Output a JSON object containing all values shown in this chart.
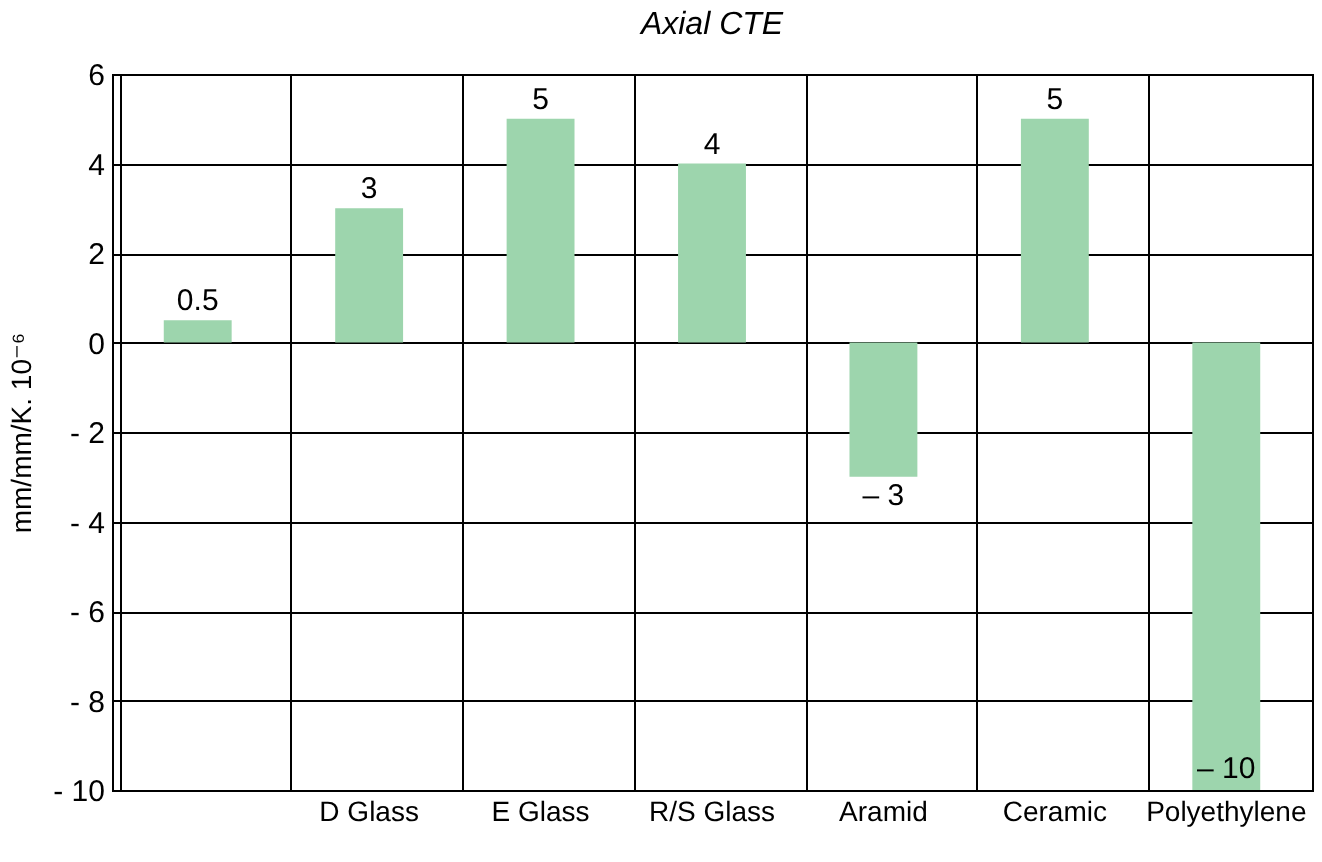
{
  "chart_data": {
    "type": "bar",
    "title": "Axial CTE",
    "ylabel": "mm/mm/K. 10⁻⁶",
    "categories": [
      null,
      "D Glass",
      "E Glass",
      "R/S Glass",
      "Aramid",
      "Ceramic",
      "Polyethylene"
    ],
    "values": [
      0.5,
      3,
      5,
      4,
      -3,
      5,
      -10
    ],
    "value_labels": [
      "0.5",
      "3",
      "5",
      "4",
      "– 3",
      "5",
      "– 10"
    ],
    "color": "#9dd5ad",
    "ylim": [
      -10,
      6
    ],
    "yticks": [
      {
        "value": -10,
        "label": "- 10"
      },
      {
        "value": -8,
        "label": "- 8"
      },
      {
        "value": -6,
        "label": "- 6"
      },
      {
        "value": -4,
        "label": "- 4"
      },
      {
        "value": -2,
        "label": "- 2"
      },
      0,
      2,
      4,
      6
    ],
    "grid": true
  }
}
